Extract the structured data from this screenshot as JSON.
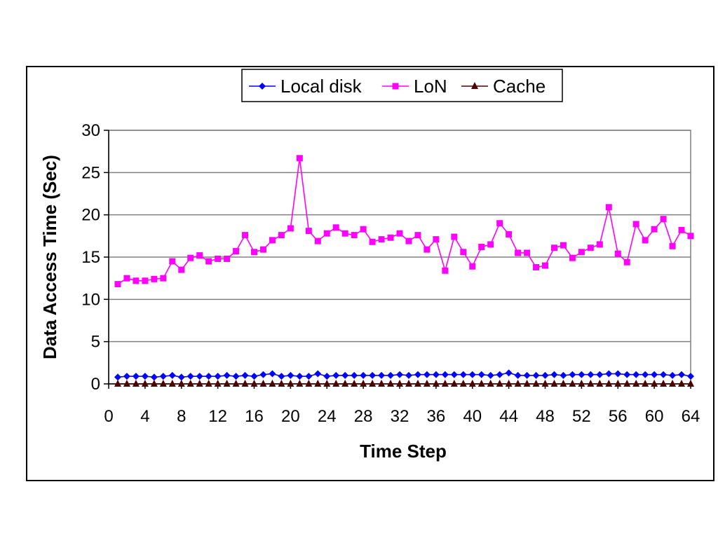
{
  "chart_data": {
    "type": "line",
    "title": "",
    "xlabel": "Time Step",
    "ylabel": "Data Access Time (Sec)",
    "xlim": [
      0,
      64
    ],
    "ylim": [
      0,
      30
    ],
    "xticks": [
      0,
      4,
      8,
      12,
      16,
      20,
      24,
      28,
      32,
      36,
      40,
      44,
      48,
      52,
      56,
      60,
      64
    ],
    "yticks": [
      0,
      5,
      10,
      15,
      20,
      25,
      30
    ],
    "grid": "horizontal",
    "legend_position": "top-center",
    "x": [
      1,
      2,
      3,
      4,
      5,
      6,
      7,
      8,
      9,
      10,
      11,
      12,
      13,
      14,
      15,
      16,
      17,
      18,
      19,
      20,
      21,
      22,
      23,
      24,
      25,
      26,
      27,
      28,
      29,
      30,
      31,
      32,
      33,
      34,
      35,
      36,
      37,
      38,
      39,
      40,
      41,
      42,
      43,
      44,
      45,
      46,
      47,
      48,
      49,
      50,
      51,
      52,
      53,
      54,
      55,
      56,
      57,
      58,
      59,
      60,
      61,
      62,
      63,
      64
    ],
    "series": [
      {
        "name": "Local disk",
        "color": "#0000ff",
        "marker": "diamond",
        "values": [
          0.8,
          0.9,
          0.9,
          0.9,
          0.8,
          0.9,
          1.0,
          0.8,
          0.9,
          0.9,
          0.9,
          0.9,
          1.0,
          0.9,
          1.0,
          0.9,
          1.1,
          1.2,
          0.9,
          1.0,
          0.9,
          0.9,
          1.2,
          0.9,
          1.0,
          1.0,
          1.0,
          1.0,
          1.0,
          1.0,
          1.0,
          1.1,
          1.0,
          1.1,
          1.1,
          1.1,
          1.1,
          1.1,
          1.1,
          1.1,
          1.1,
          1.0,
          1.1,
          1.3,
          1.0,
          1.0,
          1.0,
          1.0,
          1.1,
          1.0,
          1.1,
          1.1,
          1.1,
          1.1,
          1.2,
          1.2,
          1.1,
          1.1,
          1.1,
          1.1,
          1.1,
          1.0,
          1.1,
          0.9
        ]
      },
      {
        "name": "LoN",
        "color": "#ff00ff",
        "marker": "square",
        "values": [
          11.8,
          12.5,
          12.2,
          12.2,
          12.4,
          12.5,
          14.5,
          13.5,
          14.9,
          15.2,
          14.5,
          14.8,
          14.8,
          15.7,
          17.6,
          15.6,
          15.9,
          17.0,
          17.6,
          18.4,
          26.7,
          18.1,
          16.9,
          17.8,
          18.5,
          17.8,
          17.6,
          18.3,
          16.8,
          17.1,
          17.3,
          17.8,
          16.9,
          17.6,
          15.9,
          17.1,
          13.4,
          17.4,
          15.6,
          13.9,
          16.2,
          16.5,
          19.0,
          17.7,
          15.5,
          15.5,
          13.8,
          14.0,
          16.1,
          16.4,
          14.9,
          15.6,
          16.1,
          16.5,
          20.9,
          15.4,
          14.4,
          18.9,
          17.0,
          18.3,
          19.5,
          16.3,
          18.2,
          17.5
        ]
      },
      {
        "name": "Cache",
        "color": "#4d0000",
        "marker": "triangle",
        "values": [
          0,
          0,
          0,
          0,
          0,
          0,
          0,
          0,
          0,
          0,
          0,
          0,
          0,
          0,
          0,
          0,
          0,
          0,
          0,
          0,
          0,
          0,
          0,
          0,
          0,
          0,
          0,
          0,
          0,
          0,
          0,
          0,
          0,
          0,
          0,
          0,
          0,
          0,
          0,
          0,
          0,
          0,
          0,
          0,
          0,
          0,
          0,
          0,
          0,
          0,
          0,
          0,
          0,
          0,
          0,
          0,
          0,
          0,
          0,
          0,
          0,
          0,
          0,
          0
        ]
      }
    ]
  }
}
